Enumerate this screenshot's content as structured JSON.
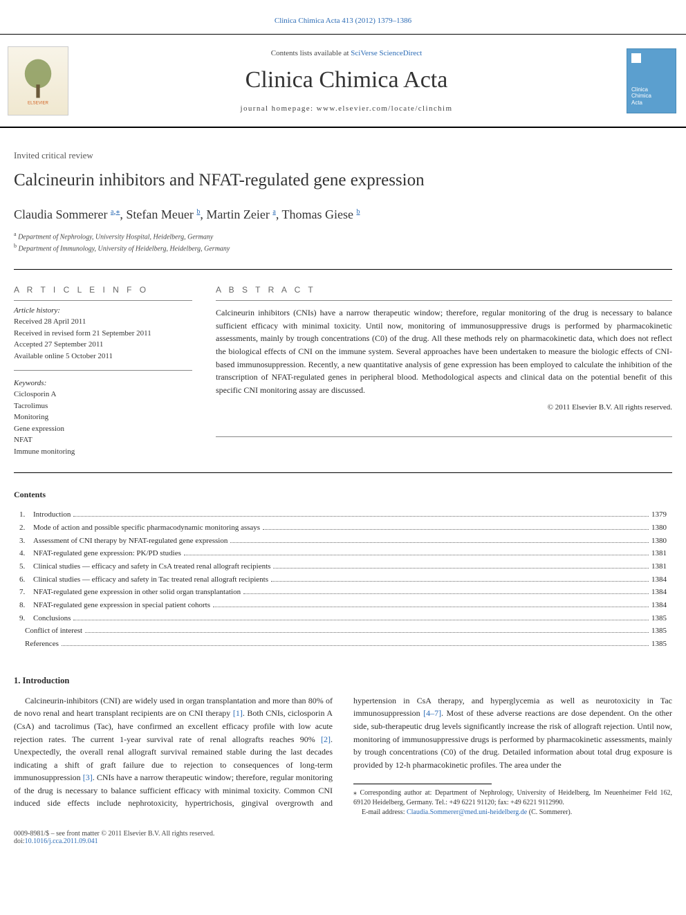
{
  "header": {
    "journal_ref": "Clinica Chimica Acta 413 (2012) 1379–1386",
    "contents_prefix": "Contents lists available at ",
    "contents_link": "SciVerse ScienceDirect",
    "journal_title": "Clinica Chimica Acta",
    "homepage_label": "journal homepage: ",
    "homepage_url": "www.elsevier.com/locate/clinchim",
    "publisher_name": "ELSEVIER",
    "cover_text_1": "Clinica",
    "cover_text_2": "Chimica",
    "cover_text_3": "Acta"
  },
  "article": {
    "type": "Invited critical review",
    "title": "Calcineurin inhibitors and NFAT-regulated gene expression",
    "authors": [
      {
        "name": "Claudia Sommerer",
        "affil": "a",
        "corr": true
      },
      {
        "name": "Stefan Meuer",
        "affil": "b",
        "corr": false
      },
      {
        "name": "Martin Zeier",
        "affil": "a",
        "corr": false
      },
      {
        "name": "Thomas Giese",
        "affil": "b",
        "corr": false
      }
    ],
    "affiliations": [
      {
        "mark": "a",
        "text": "Department of Nephrology, University Hospital, Heidelberg, Germany"
      },
      {
        "mark": "b",
        "text": "Department of Immunology, University of Heidelberg, Heidelberg, Germany"
      }
    ]
  },
  "info": {
    "label": "A R T I C L E   I N F O",
    "history_head": "Article history:",
    "history": [
      "Received 28 April 2011",
      "Received in revised form 21 September 2011",
      "Accepted 27 September 2011",
      "Available online 5 October 2011"
    ],
    "keywords_head": "Keywords:",
    "keywords": [
      "Ciclosporin A",
      "Tacrolimus",
      "Monitoring",
      "Gene expression",
      "NFAT",
      "Immune monitoring"
    ]
  },
  "abstract": {
    "label": "A B S T R A C T",
    "text": "Calcineurin inhibitors (CNIs) have a narrow therapeutic window; therefore, regular monitoring of the drug is necessary to balance sufficient efficacy with minimal toxicity. Until now, monitoring of immunosuppressive drugs is performed by pharmacokinetic assessments, mainly by trough concentrations (C0) of the drug. All these methods rely on pharmacokinetic data, which does not reflect the biological effects of CNI on the immune system. Several approaches have been undertaken to measure the biologic effects of CNI-based immunosuppression. Recently, a new quantitative analysis of gene expression has been employed to calculate the inhibition of the transcription of NFAT-regulated genes in peripheral blood. Methodological aspects and clinical data on the potential benefit of this specific CNI monitoring assay are discussed.",
    "copyright": "© 2011 Elsevier B.V. All rights reserved."
  },
  "contents": {
    "heading": "Contents",
    "entries": [
      {
        "num": "1.",
        "title": "Introduction",
        "page": "1379"
      },
      {
        "num": "2.",
        "title": "Mode of action and possible specific pharmacodynamic monitoring assays",
        "page": "1380"
      },
      {
        "num": "3.",
        "title": "Assessment of CNI therapy by NFAT-regulated gene expression",
        "page": "1380"
      },
      {
        "num": "4.",
        "title": "NFAT-regulated gene expression: PK/PD studies",
        "page": "1381"
      },
      {
        "num": "5.",
        "title": "Clinical studies — efficacy and safety in CsA treated renal allograft recipients",
        "page": "1381"
      },
      {
        "num": "6.",
        "title": "Clinical studies — efficacy and safety in Tac treated renal allograft recipients",
        "page": "1384"
      },
      {
        "num": "7.",
        "title": "NFAT-regulated gene expression in other solid organ transplantation",
        "page": "1384"
      },
      {
        "num": "8.",
        "title": "NFAT-regulated gene expression in special patient cohorts",
        "page": "1384"
      },
      {
        "num": "9.",
        "title": "Conclusions",
        "page": "1385"
      },
      {
        "num": "",
        "title": "Conflict of interest",
        "page": "1385"
      },
      {
        "num": "",
        "title": "References",
        "page": "1385"
      }
    ]
  },
  "body": {
    "heading": "1. Introduction",
    "p1_part1": "Calcineurin-inhibitors (CNI) are widely used in organ transplantation and more than 80% of de novo renal and heart transplant recipients are on CNI therapy ",
    "ref1": "[1]",
    "p1_part2": ". Both CNIs, ciclosporin A (CsA) and tacrolimus (Tac), have confirmed an excellent efficacy profile with low acute rejection rates. The current 1-year survival rate of renal allografts reaches 90% ",
    "ref2": "[2]",
    "p1_part3": ". Unexpectedly, the overall renal allograft survival remained stable during the last decades indicating a shift of graft failure due to rejection to consequences of long-term immunosuppression ",
    "ref3": "[3]",
    "p1_part4": ". CNIs have a narrow therapeutic window; therefore, regular monitoring of the drug is necessary to balance sufficient efficacy with minimal toxicity. Common CNI induced side effects include nephrotoxicity, hypertrichosis, gingival overgrowth and hypertension in CsA therapy, and hyperglycemia as well as neurotoxicity in Tac immunosuppression ",
    "ref4": "[4–7]",
    "p1_part5": ". Most of these adverse reactions are dose dependent. On the other side, sub-therapeutic drug levels significantly increase the risk of allograft rejection. Until now, monitoring of immunosuppressive drugs is performed by pharmacokinetic assessments, mainly by trough concentrations (C0) of the drug. Detailed information about total drug exposure is provided by 12-h pharmacokinetic profiles. The area under the"
  },
  "footnotes": {
    "corr": "Corresponding author at: Department of Nephrology, University of Heidelberg, Im Neuenheimer Feld 162, 69120 Heidelberg, Germany. Tel.: +49 6221 91120; fax: +49 6221 9112990.",
    "email_label": "E-mail address: ",
    "email": "Claudia.Sommerer@med.uni-heidelberg.de",
    "email_suffix": " (C. Sommerer)."
  },
  "footer": {
    "left1": "0009-8981/$ – see front matter © 2011 Elsevier B.V. All rights reserved.",
    "left2": "doi:",
    "doi": "10.1016/j.cca.2011.09.041"
  },
  "palette": {
    "link": "#2b6bb5",
    "text": "#2a2a2a",
    "cover_bg": "#5b9fcf",
    "rule": "#000000"
  }
}
